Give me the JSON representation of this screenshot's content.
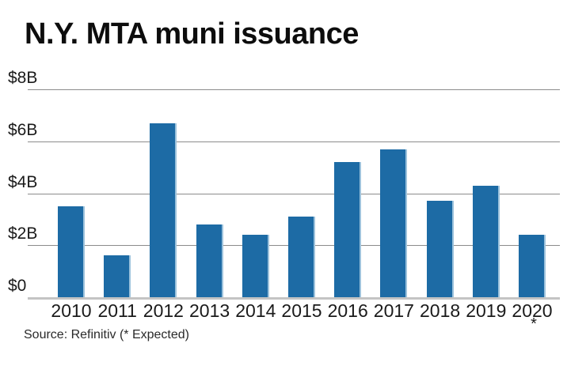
{
  "header": {
    "title": "N.Y. MTA muni issuance"
  },
  "chart_data": {
    "type": "bar",
    "title": "N.Y. MTA muni issuance",
    "categories": [
      "2010",
      "2011",
      "2012",
      "2013",
      "2014",
      "2015",
      "2016",
      "2017",
      "2018",
      "2019",
      "2020"
    ],
    "values": [
      3.5,
      1.6,
      6.7,
      2.8,
      2.4,
      3.1,
      5.2,
      5.7,
      3.7,
      4.3,
      2.4
    ],
    "ylim": [
      0,
      8
    ],
    "y_ticks": [
      {
        "value": 8,
        "label": "$8B"
      },
      {
        "value": 6,
        "label": "$6B"
      },
      {
        "value": 4,
        "label": "$4B"
      },
      {
        "value": 2,
        "label": "$2B"
      },
      {
        "value": 0,
        "label": "$0"
      }
    ],
    "grid": "horizontal",
    "legend": "none",
    "last_category_footnote_marker": "*",
    "colors": {
      "bar": "#1d6ba5",
      "bar_edge_highlight": "#9cc2dc",
      "gridline": "#8c8c8c",
      "axis_line": "#c4c4c4",
      "text": "#1a1a1a"
    }
  },
  "footer": {
    "source": "Source: Refinitiv (* Expected)"
  }
}
